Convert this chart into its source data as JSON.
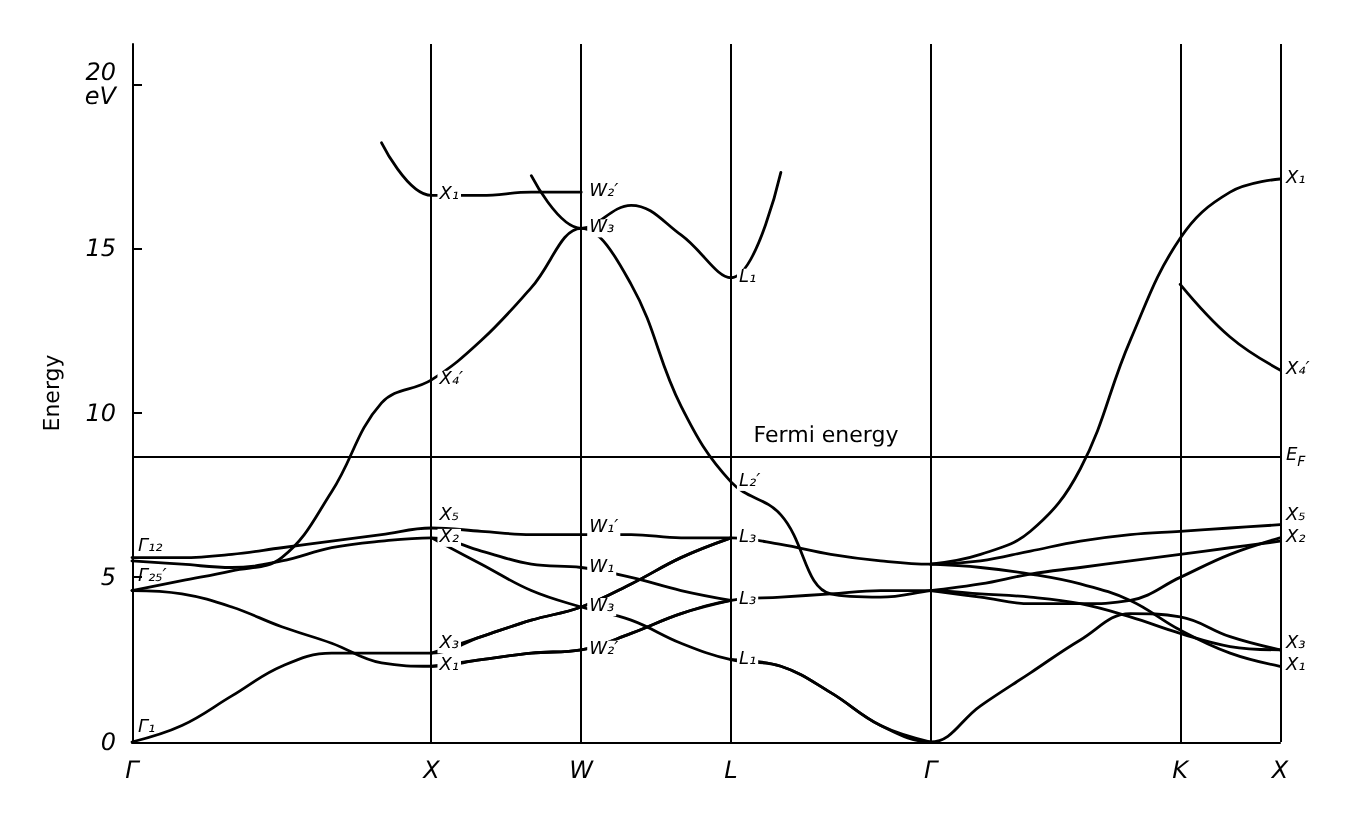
{
  "chart_data": {
    "type": "line",
    "ylabel": "Energy",
    "categories": [
      "Γ",
      null,
      null,
      null,
      null,
      null,
      "X",
      null,
      null,
      "W",
      null,
      null,
      "L",
      null,
      null,
      null,
      "Γ",
      null,
      null,
      null,
      null,
      "K",
      null,
      "X"
    ],
    "ylim": [
      0,
      21.2
    ],
    "yticks": [
      0,
      5,
      10,
      15,
      {
        "value": 20,
        "label": "20\neV"
      }
    ],
    "grid": "x",
    "marker": "none",
    "line_style": "solid",
    "series": [
      {
        "color": "#000000",
        "values": [
          0,
          0.5,
          1.4,
          2.3,
          2.7,
          2.7,
          2.7,
          3.2,
          3.7,
          4.1,
          4.8,
          5.6,
          6.2,
          null,
          null,
          null,
          null,
          null,
          null,
          null,
          null,
          null,
          null,
          null
        ]
      },
      {
        "color": "#000000",
        "values": [
          4.6,
          4.5,
          4.1,
          3.5,
          3.0,
          2.4,
          2.3,
          2.5,
          2.7,
          2.8,
          3.3,
          3.9,
          4.3,
          4.4,
          4.5,
          4.6,
          4.6,
          4.5,
          4.4,
          4.2,
          3.8,
          3.3,
          2.9,
          2.8
        ]
      },
      {
        "color": "#000000",
        "values": [
          4.6,
          4.9,
          5.2,
          5.6,
          7.6,
          10.3,
          11.0,
          12.2,
          13.8,
          15.6,
          13.9,
          10.2,
          7.9,
          6.9,
          4.5,
          4.4,
          4.6,
          4.8,
          5.1,
          5.3,
          5.5,
          5.7,
          5.9,
          6.1
        ]
      },
      {
        "color": "#000000",
        "values": [
          5.5,
          5.4,
          5.3,
          5.5,
          5.9,
          6.1,
          6.2,
          5.8,
          5.4,
          5.3,
          5.0,
          4.6,
          4.3,
          null,
          null,
          null,
          null,
          null,
          null,
          null,
          null,
          null,
          null,
          null
        ]
      },
      {
        "color": "#000000",
        "values": [
          null,
          null,
          null,
          null,
          null,
          null,
          6.2,
          5.4,
          4.6,
          4.1,
          3.7,
          3.0,
          2.5,
          2.3,
          1.5,
          0.5,
          0,
          1.1,
          2.1,
          3.1,
          3.9,
          3.8,
          3.2,
          2.8
        ]
      },
      {
        "color": "#000000",
        "values": [
          5.6,
          5.6,
          5.7,
          5.9,
          6.1,
          6.3,
          6.5,
          6.4,
          6.3,
          6.3,
          6.3,
          6.2,
          6.2,
          6.0,
          5.7,
          5.5,
          5.4,
          5.5,
          5.8,
          6.1,
          6.3,
          6.4,
          6.5,
          6.6
        ]
      },
      {
        "color": "#000000",
        "values": [
          null,
          null,
          null,
          null,
          null,
          null,
          2.7,
          3.2,
          3.7,
          4.1,
          4.8,
          5.6,
          6.2,
          null,
          null,
          null,
          5.4,
          5.3,
          5.1,
          4.8,
          4.3,
          3.4,
          2.7,
          2.3
        ]
      },
      {
        "color": "#000000",
        "values": [
          null,
          null,
          null,
          null,
          null,
          null,
          2.3,
          2.5,
          2.7,
          2.8,
          3.3,
          3.9,
          4.3,
          null,
          null,
          null,
          4.6,
          4.4,
          4.2,
          4.2,
          4.3,
          5.0,
          5.7,
          6.2
        ]
      },
      {
        "color": "#000000",
        "values": [
          null,
          null,
          null,
          null,
          null,
          null,
          null,
          null,
          null,
          null,
          null,
          null,
          2.5,
          2.3,
          1.5,
          0.5,
          0,
          null,
          null,
          null,
          null,
          null,
          null,
          null
        ]
      },
      {
        "color": "#000000",
        "values": [
          null,
          null,
          null,
          null,
          null,
          null,
          null,
          null,
          null,
          null,
          null,
          null,
          null,
          null,
          null,
          null,
          5.4,
          5.7,
          6.4,
          8.3,
          12.2,
          15.3,
          16.7,
          17.1
        ]
      },
      {
        "color": "#000000",
        "values": [
          null,
          null,
          null,
          null,
          null,
          null,
          null,
          null,
          null,
          null,
          null,
          null,
          null,
          null,
          null,
          null,
          null,
          null,
          null,
          null,
          null,
          13.9,
          12.3,
          11.3
        ]
      },
      {
        "color": "#000000",
        "values": [
          null,
          null,
          null,
          null,
          null,
          18.2,
          16.6,
          16.6,
          16.7,
          16.7,
          null,
          null,
          null,
          null,
          null,
          null,
          null,
          null,
          null,
          null,
          null,
          null,
          null,
          null
        ]
      },
      {
        "color": "#000000",
        "values": [
          null,
          null,
          null,
          null,
          null,
          null,
          null,
          null,
          17.2,
          15.6,
          16.3,
          15.4,
          14.1,
          17.3,
          null,
          null,
          null,
          null,
          null,
          null,
          null,
          null,
          null,
          null
        ]
      }
    ],
    "ref_lines": [
      {
        "axis": "y",
        "value": 8.7,
        "label": "Fermi energy",
        "color": "#000000"
      }
    ],
    "annotations": [
      {
        "text": "Γ₁",
        "x": "Γ",
        "y": 0
      },
      {
        "text": "Γ₂₅′",
        "x": "Γ",
        "y": 4.6
      },
      {
        "text": "Γ₁₂",
        "x": "Γ",
        "y": 5.5
      },
      {
        "text": "X₁",
        "x": "X",
        "y": 16.6
      },
      {
        "text": "X₄′",
        "x": "X",
        "y": 11.0
      },
      {
        "text": "X₅",
        "x": "X",
        "y": 6.5
      },
      {
        "text": "X₂",
        "x": "X",
        "y": 6.2
      },
      {
        "text": "X₃",
        "x": "X",
        "y": 2.7
      },
      {
        "text": "X₁",
        "x": "X",
        "y": 2.3
      },
      {
        "text": "W₂′",
        "x": "W",
        "y": 16.7
      },
      {
        "text": "W₃",
        "x": "W",
        "y": 15.6
      },
      {
        "text": "W₁′",
        "x": "W",
        "y": 6.5
      },
      {
        "text": "W₁",
        "x": "W",
        "y": 5.3
      },
      {
        "text": "W₃",
        "x": "W",
        "y": 4.1
      },
      {
        "text": "W₂′",
        "x": "W",
        "y": 2.8
      },
      {
        "text": "L₁",
        "x": "L",
        "y": 14.1
      },
      {
        "text": "L₂′",
        "x": "L",
        "y": 7.9
      },
      {
        "text": "L₃",
        "x": "L",
        "y": 6.2
      },
      {
        "text": "L₃",
        "x": "L",
        "y": 4.3
      },
      {
        "text": "L₁",
        "x": "L",
        "y": 2.5
      },
      "X₁",
      "X₄′",
      "E$_{F}$",
      "X₅",
      "X₂",
      "X₃",
      "X₁"
    ]
  }
}
